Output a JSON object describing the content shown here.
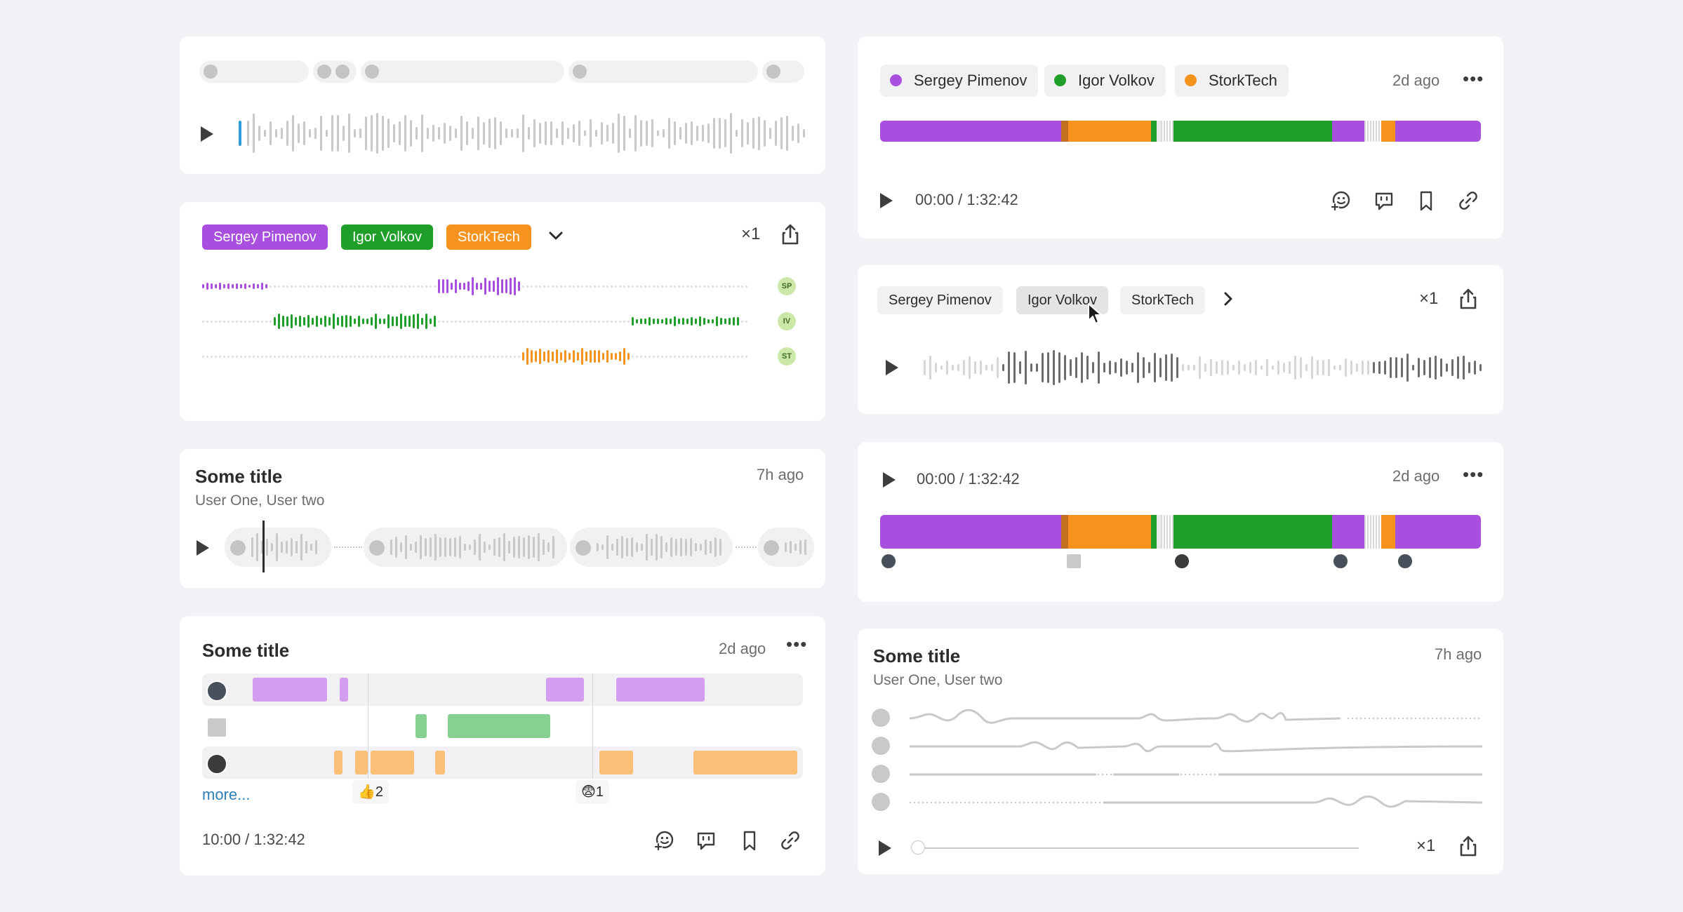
{
  "colors": {
    "purple": "#a94fdf",
    "green": "#1f9e2a",
    "orange": "#f6931e",
    "track": "#c9c9cc",
    "accent": "#2f9bd8",
    "link": "#2f7fb6"
  },
  "speakers": [
    {
      "name": "Sergey Pimenov",
      "initials": "SP",
      "color": "#a94fdf"
    },
    {
      "name": "Igor Volkov",
      "initials": "IV",
      "color": "#1f9e2a"
    },
    {
      "name": "StorkTech",
      "initials": "ST",
      "color": "#f6931e"
    }
  ],
  "card_a": {},
  "card_b": {
    "speed": "×1",
    "tags": [
      "Sergey Pimenov",
      "Igor Volkov",
      "StorkTech"
    ],
    "initials": [
      "SP",
      "IV",
      "ST"
    ]
  },
  "card_c": {
    "title": "Some title",
    "participants": "User One, User two",
    "age": "7h ago"
  },
  "card_d": {
    "title": "Some title",
    "age": "2d ago",
    "more": "more...",
    "time": "10:00 / 1:32:42",
    "reactions": [
      {
        "emoji": "👍",
        "count": "2"
      },
      {
        "emoji": "😨",
        "count": "1"
      }
    ]
  },
  "card_e": {
    "age": "2d ago",
    "time": "00:00 / 1:32:42",
    "tags": [
      "Sergey Pimenov",
      "Igor Volkov",
      "StorkTech"
    ]
  },
  "card_f": {
    "speed": "×1",
    "tags": [
      "Sergey Pimenov",
      "Igor Volkov",
      "StorkTech"
    ]
  },
  "card_g": {
    "age": "2d ago",
    "time": "00:00 / 1:32:42"
  },
  "card_h": {
    "title": "Some title",
    "participants": "User One, User two",
    "age": "7h ago",
    "speed": "×1"
  },
  "icons": [
    "play-icon",
    "share-icon",
    "chevron-down-icon",
    "chevron-right-icon",
    "more-icon",
    "add-reaction-icon",
    "comment-icon",
    "bookmark-icon",
    "link-icon",
    "cursor-icon",
    "avatar-icon"
  ]
}
